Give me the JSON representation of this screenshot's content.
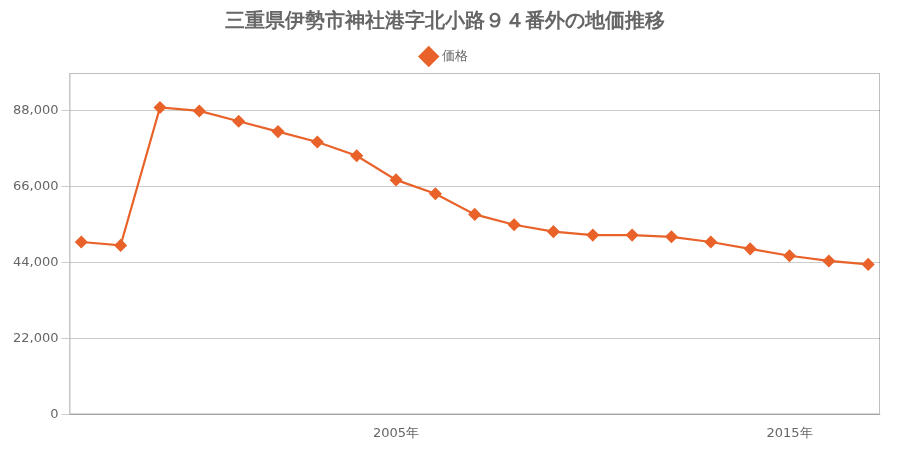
{
  "chart_data": {
    "type": "line",
    "title": "三重県伊勢市神社港字北小路９４番外の地価推移",
    "x": [
      1997,
      1998,
      1999,
      2000,
      2001,
      2002,
      2003,
      2004,
      2005,
      2006,
      2007,
      2008,
      2009,
      2010,
      2011,
      2012,
      2013,
      2014,
      2015,
      2016,
      2017
    ],
    "series": [
      {
        "name": "価格",
        "color": "#e8622a",
        "marker": "diamond",
        "line_style": "solid",
        "values": [
          50000,
          49000,
          89000,
          88000,
          85000,
          82000,
          79000,
          75000,
          68000,
          64000,
          58000,
          55000,
          53000,
          52000,
          52000,
          51500,
          50000,
          48000,
          46000,
          44500,
          43500
        ]
      }
    ],
    "xlim": [
      1996.7,
      2017.3
    ],
    "xticks": [
      {
        "value": 2005,
        "label": "2005年"
      },
      {
        "value": 2015,
        "label": "2015年"
      }
    ],
    "ylim": [
      0,
      99000
    ],
    "yticks": [
      0,
      {
        "value": 22000,
        "label": "22,000"
      },
      {
        "value": 44000,
        "label": "44,000"
      },
      {
        "value": 66000,
        "label": "66,000"
      },
      {
        "value": 88000,
        "label": "88,000"
      }
    ],
    "grid": "y",
    "legend": "top"
  }
}
